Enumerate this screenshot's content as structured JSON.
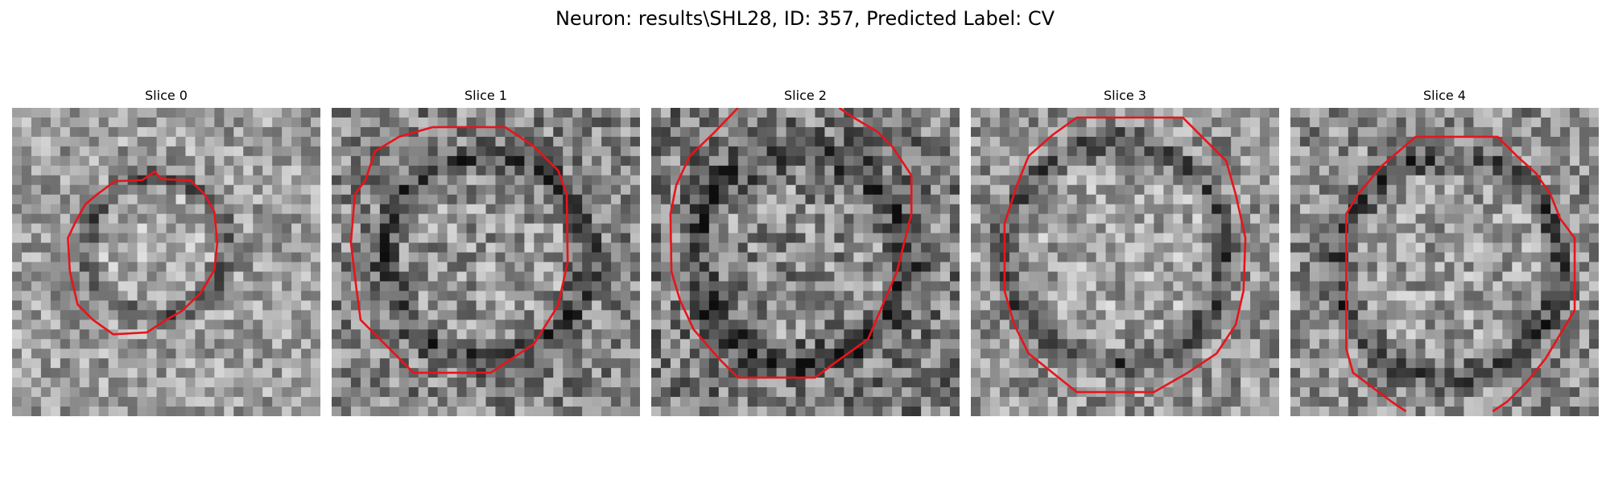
{
  "figure": {
    "title": "Neuron: results\\SHL28, ID: 357, Predicted Label: CV"
  },
  "colors": {
    "contour": "#e8141a",
    "background": "#ffffff"
  },
  "panels": [
    {
      "title": "Slice 0"
    },
    {
      "title": "Slice 1"
    },
    {
      "title": "Slice 2"
    },
    {
      "title": "Slice 3"
    },
    {
      "title": "Slice 4"
    }
  ]
}
